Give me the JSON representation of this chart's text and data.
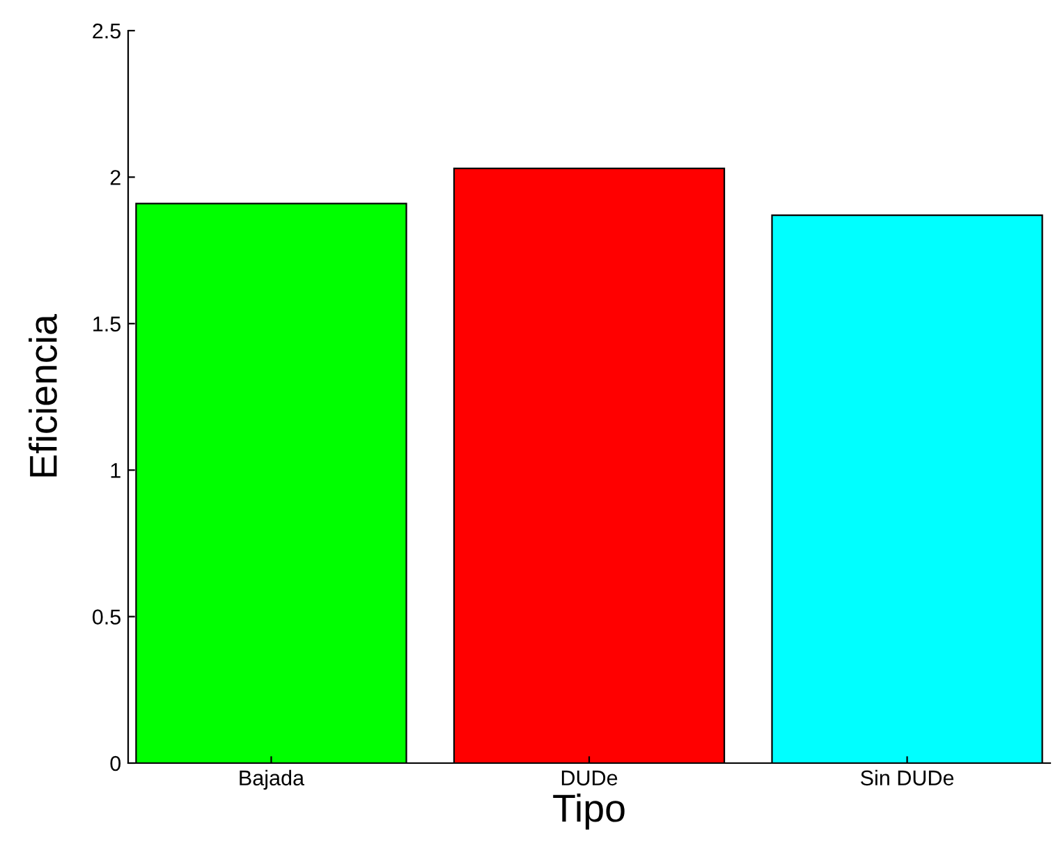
{
  "chart_data": {
    "type": "bar",
    "xlabel": "Tipo",
    "ylabel": "Eficiencia",
    "categories": [
      "Bajada",
      "DUDe",
      "Sin DUDe"
    ],
    "values": [
      1.91,
      2.03,
      1.87
    ],
    "colors": [
      "#00ff00",
      "#ff0000",
      "#00ffff"
    ],
    "ylim": [
      0,
      2.5
    ],
    "yticks": [
      0,
      0.5,
      1,
      1.5,
      2,
      2.5
    ],
    "grid": false,
    "legend": false
  }
}
